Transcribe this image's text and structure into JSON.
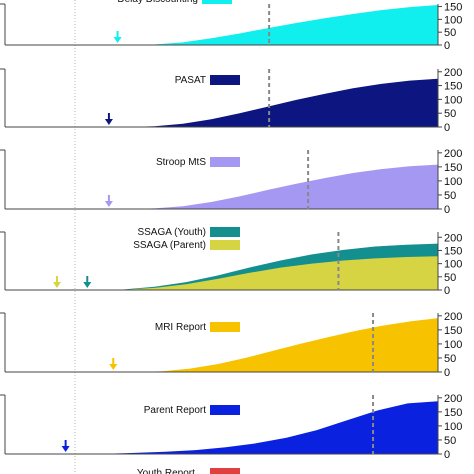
{
  "chart_data": [
    {
      "type": "area",
      "series": [
        {
          "name": "Delay Discounting",
          "color": "#11eeee"
        }
      ],
      "y_ticks": [
        0,
        50,
        100,
        150
      ],
      "ylim": [
        0,
        160
      ],
      "x_range": [
        0,
        100
      ],
      "start_x": 28,
      "dashed_x": 61,
      "marker_x": 26,
      "marker_colors": [
        "#11eeee"
      ],
      "values": [
        0,
        2,
        10,
        26,
        45,
        66,
        86,
        104,
        121,
        136,
        148,
        156
      ]
    },
    {
      "type": "area",
      "series": [
        {
          "name": "PASAT",
          "color": "#0d1680"
        }
      ],
      "y_ticks": [
        0,
        50,
        100,
        150,
        200
      ],
      "ylim": [
        0,
        210
      ],
      "x_range": [
        0,
        100
      ],
      "start_x": 28,
      "dashed_x": 61,
      "marker_x": 24,
      "marker_colors": [
        "#0d1680"
      ],
      "values": [
        0,
        3,
        12,
        28,
        50,
        74,
        98,
        120,
        140,
        156,
        168,
        175
      ]
    },
    {
      "type": "area",
      "series": [
        {
          "name": "Stroop MtS",
          "color": "#a598f2"
        }
      ],
      "y_ticks": [
        0,
        50,
        100,
        150,
        200
      ],
      "ylim": [
        0,
        210
      ],
      "x_range": [
        0,
        100
      ],
      "start_x": 28,
      "dashed_x": 70,
      "marker_x": 24,
      "marker_colors": [
        "#a598f2"
      ],
      "values": [
        0,
        2,
        10,
        25,
        45,
        68,
        90,
        110,
        128,
        142,
        152,
        158
      ]
    },
    {
      "type": "area",
      "series": [
        {
          "name": "SSAGA (Youth)",
          "color": "#148f8f",
          "values": [
            0,
            2,
            12,
            30,
            55,
            85,
            112,
            135,
            152,
            165,
            172,
            176
          ]
        },
        {
          "name": "SSAGA (Parent)",
          "color": "#d6d443",
          "values": [
            0,
            1,
            8,
            22,
            42,
            65,
            85,
            100,
            112,
            120,
            125,
            128
          ]
        }
      ],
      "y_ticks": [
        0,
        50,
        100,
        150,
        200
      ],
      "ylim": [
        0,
        220
      ],
      "x_range": [
        0,
        100
      ],
      "start_x": 20,
      "dashed_x": 77,
      "marker_x": 12,
      "marker_colors": [
        "#d6d443",
        "#148f8f"
      ]
    },
    {
      "type": "area",
      "series": [
        {
          "name": "MRI Report",
          "color": "#f7c200"
        }
      ],
      "y_ticks": [
        0,
        50,
        100,
        150,
        200
      ],
      "ylim": [
        0,
        210
      ],
      "x_range": [
        0,
        100
      ],
      "start_x": 30,
      "dashed_x": 85,
      "marker_x": 25,
      "marker_colors": [
        "#f7c200"
      ],
      "values": [
        0,
        3,
        12,
        28,
        50,
        75,
        100,
        124,
        146,
        165,
        180,
        192
      ]
    },
    {
      "type": "area",
      "series": [
        {
          "name": "Parent Report",
          "color": "#0a22e0"
        }
      ],
      "y_ticks": [
        0,
        50,
        100,
        150,
        200
      ],
      "ylim": [
        0,
        210
      ],
      "x_range": [
        0,
        100
      ],
      "start_x": 16,
      "dashed_x": 85,
      "marker_x": 14,
      "marker_colors": [
        "#0a22e0"
      ],
      "values": [
        0,
        1,
        4,
        8,
        14,
        24,
        38,
        58,
        85,
        120,
        155,
        180,
        188
      ]
    },
    {
      "type": "area",
      "series": [
        {
          "name": "Youth Report ...",
          "color": "#e04040"
        }
      ],
      "partial": true
    }
  ]
}
